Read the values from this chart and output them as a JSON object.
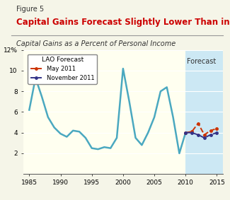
{
  "figure_label": "Figure 5",
  "title": "Capital Gains Forecast Slightly Lower Than in May",
  "subtitle": "Capital Gains as a Percent of Personal Income",
  "background_color": "#fffff0",
  "forecast_bg_color": "#cce8f4",
  "title_color": "#cc0000",
  "subtitle_color": "#333333",
  "figure_label_color": "#333333",
  "ylim": [
    0,
    12
  ],
  "yticks": [
    2,
    4,
    6,
    8,
    10,
    "12%"
  ],
  "xlim": [
    1984,
    2016
  ],
  "xticks": [
    1985,
    1990,
    1995,
    2000,
    2005,
    2010,
    2015
  ],
  "forecast_start": 2010,
  "historical_x": [
    1985,
    1986,
    1987,
    1988,
    1989,
    1990,
    1991,
    1992,
    1993,
    1994,
    1995,
    1996,
    1997,
    1998,
    1999,
    2000,
    2001,
    2002,
    2003,
    2004,
    2005,
    2006,
    2007,
    2008,
    2009,
    2010
  ],
  "historical_y": [
    6.2,
    9.3,
    7.5,
    5.5,
    4.5,
    3.9,
    3.6,
    4.2,
    4.1,
    3.5,
    2.5,
    2.4,
    2.6,
    2.5,
    3.5,
    10.2,
    7.0,
    3.5,
    2.8,
    4.0,
    5.5,
    8.0,
    8.4,
    5.5,
    2.0,
    4.0
  ],
  "may_x": [
    2010,
    2011,
    2012,
    2013,
    2014,
    2015
  ],
  "may_y": [
    4.0,
    4.1,
    4.9,
    3.8,
    4.2,
    4.4
  ],
  "nov_x": [
    2010,
    2011,
    2012,
    2013,
    2014,
    2015
  ],
  "nov_y": [
    4.0,
    4.0,
    3.8,
    3.5,
    3.8,
    4.0
  ],
  "historical_color": "#4aa8c0",
  "may_color": "#cc3300",
  "nov_color": "#333388",
  "line_width": 1.8,
  "forecast_label": "Forecast",
  "legend_title": "LAO Forecast",
  "legend_may": "May 2011",
  "legend_nov": "November 2011"
}
